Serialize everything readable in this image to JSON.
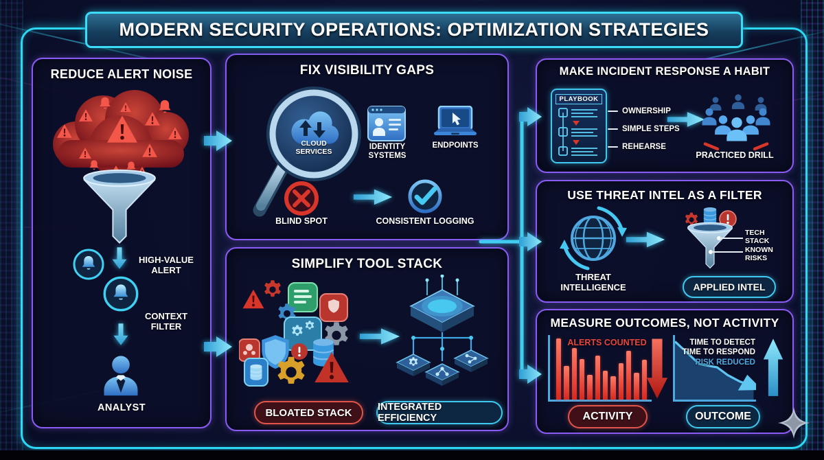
{
  "title": "MODERN SECURITY OPERATIONS: OPTIMIZATION STRATEGIES",
  "colors": {
    "frame_cyan": "#2bd9f7",
    "panel_border_purple": "#8a5cf5",
    "alert_red": "#e8453c",
    "action_cyan": "#41cdf1",
    "steel_blue": "#8fb8dc",
    "intel_blue": "#4fa8e0",
    "background_navy": "#0d1230"
  },
  "icons": {
    "alert-cloud-icon": "red cloud of warning triangles and bells",
    "warning-triangle-icon": "⚠",
    "bell-icon": "bell",
    "funnel-icon": "funnel",
    "analyst-icon": "person",
    "magnifier-icon": "magnifying glass",
    "cloud-sync-icon": "cloud with up/down arrows",
    "identity-card-icon": "browser card with user",
    "laptop-icon": "laptop with cursor",
    "blind-spot-icon": "red circle with X",
    "check-circle-icon": "blue circle with check",
    "tool-pile-icon": "cluttered gears shields databases",
    "integrated-hub-icon": "chip hub with connected modules",
    "playbook-icon": "playbook checklist card",
    "team-icon": "group of people",
    "globe-icon": "globe with cycle arrows",
    "intel-funnel-icon": "funnel fed by gear database alert",
    "down-arrow-icon": "red down arrow",
    "up-arrow-icon": "cyan up arrow",
    "sparkle-logo-icon": "four-point star"
  },
  "panels": {
    "reduce": {
      "title": "REDUCE ALERT NOISE",
      "high_value_alert": "HIGH-VALUE ALERT",
      "context_filter": "CONTEXT FILTER",
      "analyst": "ANALYST"
    },
    "visibility": {
      "title": "FIX VISIBILITY GAPS",
      "cloud_services": "CLOUD SERVICES",
      "identity_systems": "IDENTITY SYSTEMS",
      "endpoints": "ENDPOINTS",
      "blind_spot": "BLIND SPOT",
      "consistent_logging": "CONSISTENT LOGGING"
    },
    "simplify": {
      "title": "SIMPLIFY TOOL STACK",
      "bloated_stack": "BLOATED STACK",
      "integrated_efficiency": "INTEGRATED EFFICIENCY"
    },
    "habit": {
      "title": "MAKE INCIDENT RESPONSE A HABIT",
      "playbook": "PLAYBOOK",
      "ownership": "OWNERSHIP",
      "simple_steps": "SIMPLE STEPS",
      "rehearse": "REHEARSE",
      "practiced_drill": "PRACTICED DRILL"
    },
    "intel": {
      "title": "USE THREAT INTEL AS A FILTER",
      "threat_intelligence": "THREAT INTELLIGENCE",
      "tech_stack": "TECH STACK",
      "known_risks": "KNOWN RISKS",
      "applied_intel": "APPLIED INTEL"
    },
    "measure": {
      "title": "MEASURE OUTCOMES, NOT ACTIVITY",
      "alerts_counted": "ALERTS COUNTED",
      "activity": "ACTIVITY",
      "time_to_detect": "TIME TO DETECT",
      "time_to_respond": "TIME TO RESPOND",
      "risk_reduced": "RISK REDUCED",
      "outcome": "OUTCOME"
    }
  },
  "chart_data": [
    {
      "type": "bar",
      "title": "ALERTS COUNTED",
      "categories": [
        "b1",
        "b2",
        "b3",
        "b4",
        "b5",
        "b6",
        "b7",
        "b8",
        "b9",
        "b10",
        "b11",
        "b12"
      ],
      "values": [
        95,
        52,
        80,
        63,
        38,
        68,
        45,
        36,
        56,
        76,
        42,
        62
      ],
      "ylim": [
        0,
        100
      ],
      "bar_color": "#e8453c",
      "axis_color": "#4fa8e0",
      "grid": false,
      "annotation": "large red downward arrow beside chart",
      "caption": "ACTIVITY"
    },
    {
      "type": "area",
      "title": "TIME TO DETECT / TIME TO RESPOND / RISK REDUCED",
      "x": [
        0,
        30,
        52,
        65,
        80,
        97
      ],
      "y": [
        90,
        55,
        50,
        38,
        28,
        20
      ],
      "ylim": [
        0,
        100
      ],
      "line_color": "#5fc6f2",
      "axis_color": "#4fa8e0",
      "grid": false,
      "annotation": "declining trend line with arrowhead; large cyan upward arrow beside chart",
      "caption": "OUTCOME"
    }
  ]
}
